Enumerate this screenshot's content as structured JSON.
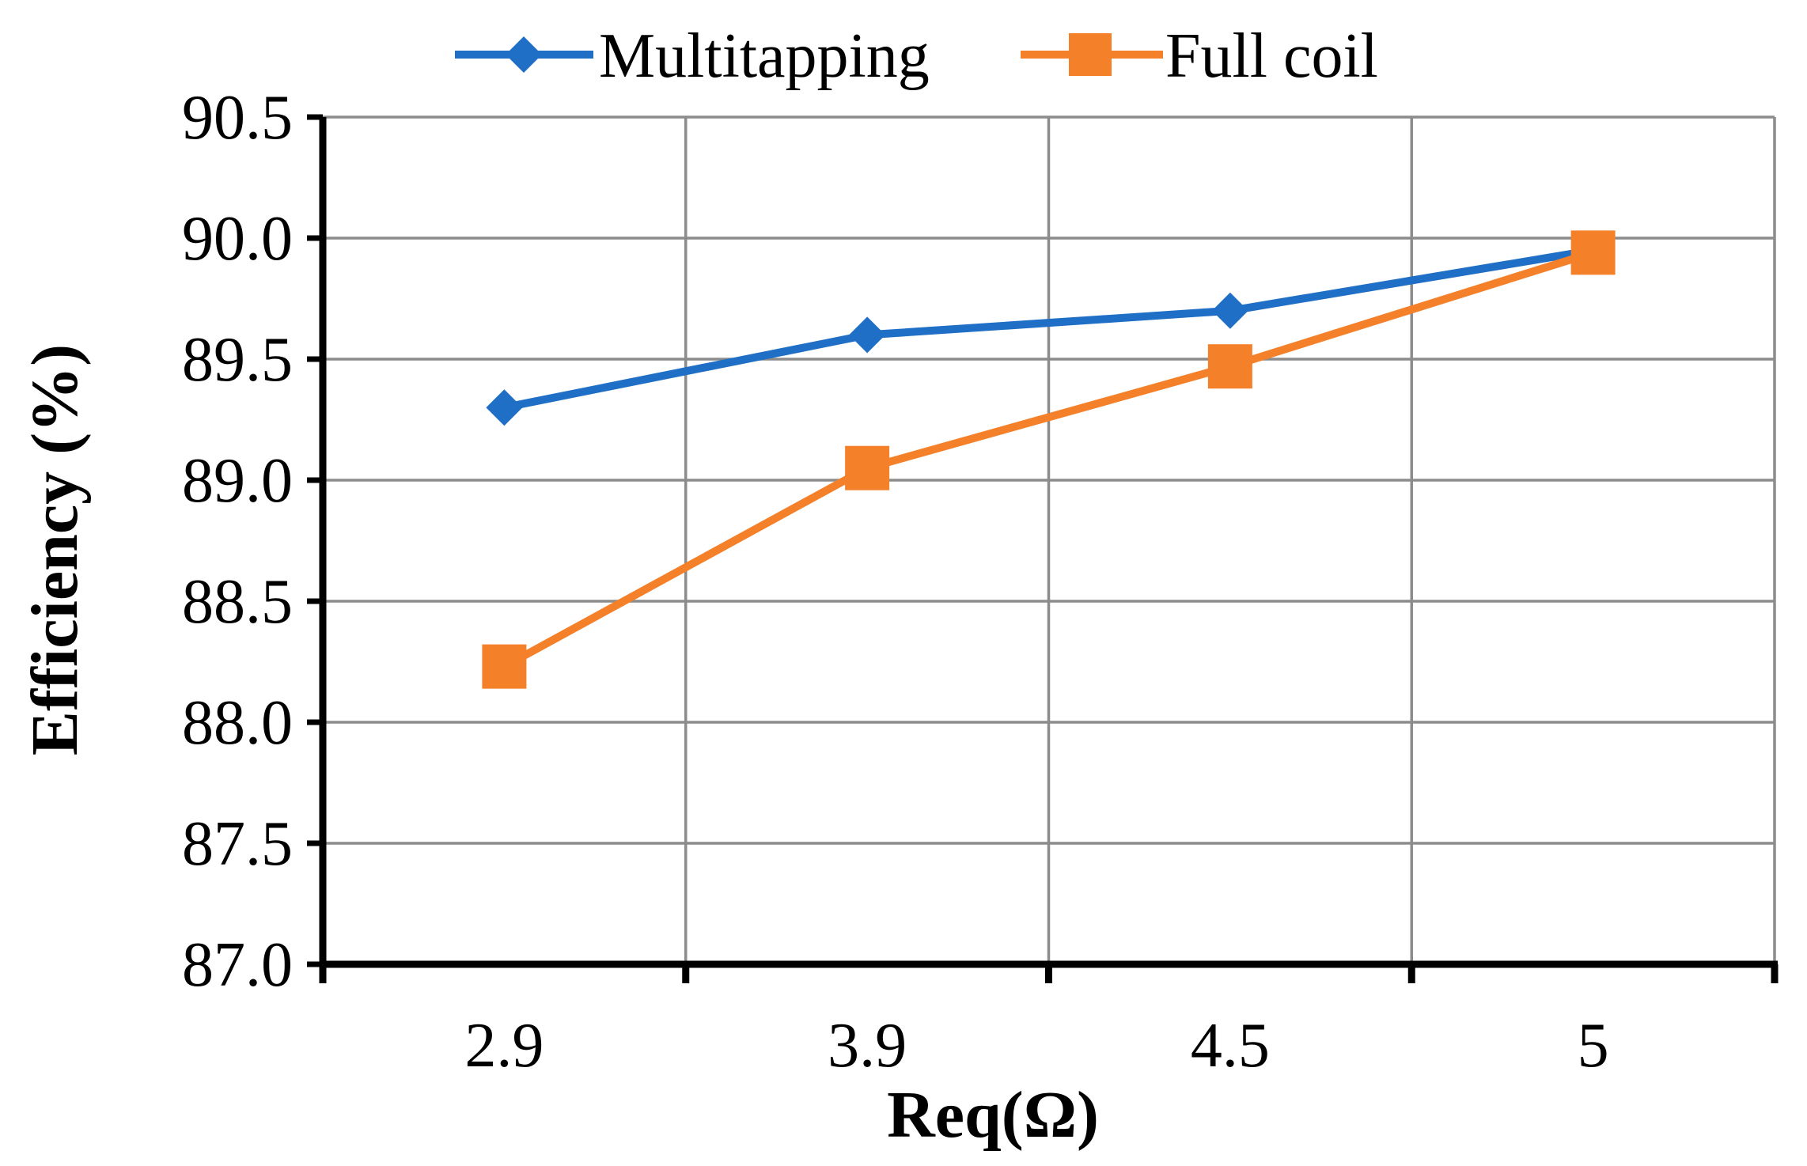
{
  "chart_data": {
    "type": "line",
    "title": "",
    "xlabel": "Req(Ω)",
    "ylabel": "Efficiency (%)",
    "categories": [
      "2.9",
      "3.9",
      "4.5",
      "5"
    ],
    "ylim": [
      87.0,
      90.5
    ],
    "yticks": [
      "87.0",
      "87.5",
      "88.0",
      "88.5",
      "89.0",
      "89.5",
      "90.0",
      "90.5"
    ],
    "grid": true,
    "legend_position": "top-center",
    "series": [
      {
        "name": "Multitapping",
        "marker": "diamond",
        "color": "#1F6FC6",
        "values": [
          89.3,
          89.6,
          89.7,
          89.95
        ]
      },
      {
        "name": "Full coil",
        "marker": "square",
        "color": "#F4802A",
        "values": [
          88.23,
          89.05,
          89.47,
          89.94
        ]
      }
    ]
  }
}
